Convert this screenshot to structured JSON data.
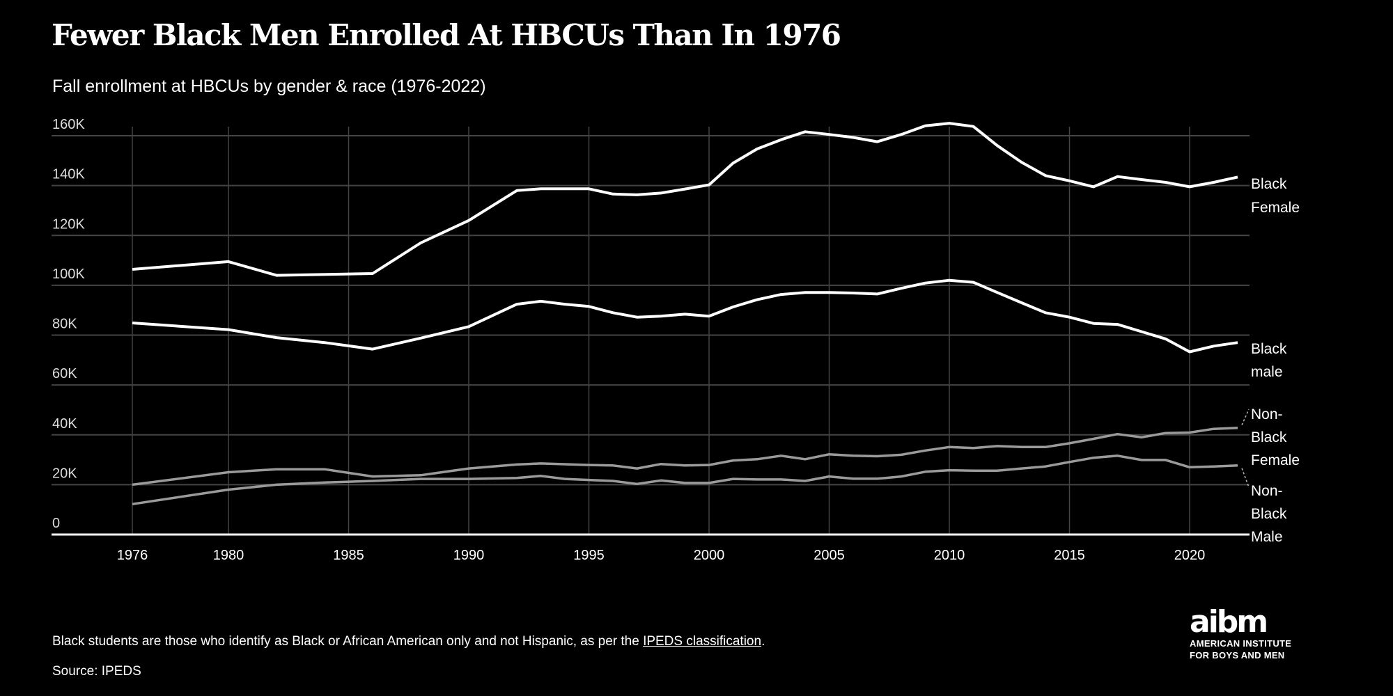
{
  "header": {
    "title": "Fewer Black Men Enrolled At HBCUs Than In 1976",
    "subtitle": "Fall enrollment at HBCUs by gender & race (1976-2022)"
  },
  "footer": {
    "note_text": "Black students are those who identify as Black or African American only and not Hispanic, as per the ",
    "note_link": "IPEDS classification",
    "note_end": ".",
    "source": "Source: IPEDS"
  },
  "logo": {
    "wordmark": "aibm",
    "line1": "AMERICAN INSTITUTE",
    "line2": "FOR BOYS AND MEN"
  },
  "colors": {
    "background": "#000000",
    "black_series": "#ffffff",
    "non_black_series": "#9a9a9a",
    "grid": "#444444"
  },
  "chart_data": {
    "type": "line",
    "title": "Fewer Black Men Enrolled At HBCUs Than In 1976",
    "subtitle": "Fall enrollment at HBCUs by gender & race (1976-2022)",
    "xlabel": "",
    "ylabel": "",
    "xlim": [
      1976,
      2022
    ],
    "ylim": [
      0,
      160000
    ],
    "grid": true,
    "legend": "direct labels at right",
    "x_ticks": [
      "1976",
      "1980",
      "1985",
      "1990",
      "1995",
      "2000",
      "2005",
      "2010",
      "2015",
      "2020"
    ],
    "y_ticks": [
      "0",
      "20K",
      "40K",
      "60K",
      "80K",
      "100K",
      "120K",
      "140K",
      "160K"
    ],
    "series": [
      {
        "name": "Black Female",
        "label_lines": [
          "Black",
          "Female"
        ],
        "color": "#ffffff",
        "points": [
          [
            1976,
            106400
          ],
          [
            1980,
            109500
          ],
          [
            1982,
            104000
          ],
          [
            1986,
            104700
          ],
          [
            1988,
            117000
          ],
          [
            1990,
            126000
          ],
          [
            1992,
            138000
          ],
          [
            1993,
            138700
          ],
          [
            1995,
            138700
          ],
          [
            1996,
            136600
          ],
          [
            1997,
            136300
          ],
          [
            1998,
            137000
          ],
          [
            1999,
            138600
          ],
          [
            2000,
            140300
          ],
          [
            2001,
            149000
          ],
          [
            2002,
            154700
          ],
          [
            2003,
            158400
          ],
          [
            2004,
            161600
          ],
          [
            2005,
            160500
          ],
          [
            2006,
            159300
          ],
          [
            2007,
            157600
          ],
          [
            2008,
            160500
          ],
          [
            2009,
            164000
          ],
          [
            2010,
            165000
          ],
          [
            2011,
            163700
          ],
          [
            2012,
            156000
          ],
          [
            2013,
            149400
          ],
          [
            2014,
            144000
          ],
          [
            2015,
            141900
          ],
          [
            2016,
            139500
          ],
          [
            2017,
            143600
          ],
          [
            2018,
            142400
          ],
          [
            2019,
            141300
          ],
          [
            2020,
            139500
          ],
          [
            2021,
            141300
          ],
          [
            2022,
            143400
          ]
        ]
      },
      {
        "name": "Black male",
        "label_lines": [
          "Black",
          "male"
        ],
        "color": "#ffffff",
        "points": [
          [
            1976,
            84900
          ],
          [
            1980,
            82200
          ],
          [
            1982,
            79000
          ],
          [
            1984,
            77000
          ],
          [
            1986,
            74400
          ],
          [
            1988,
            78800
          ],
          [
            1990,
            83400
          ],
          [
            1992,
            92400
          ],
          [
            1993,
            93600
          ],
          [
            1994,
            92400
          ],
          [
            1995,
            91500
          ],
          [
            1996,
            89000
          ],
          [
            1997,
            87200
          ],
          [
            1998,
            87600
          ],
          [
            1999,
            88400
          ],
          [
            2000,
            87600
          ],
          [
            2001,
            91300
          ],
          [
            2002,
            94200
          ],
          [
            2003,
            96300
          ],
          [
            2004,
            97100
          ],
          [
            2005,
            97100
          ],
          [
            2006,
            96900
          ],
          [
            2007,
            96500
          ],
          [
            2008,
            98800
          ],
          [
            2009,
            100900
          ],
          [
            2010,
            102000
          ],
          [
            2011,
            101200
          ],
          [
            2012,
            97100
          ],
          [
            2013,
            93000
          ],
          [
            2014,
            89000
          ],
          [
            2015,
            87200
          ],
          [
            2016,
            84700
          ],
          [
            2017,
            84300
          ],
          [
            2018,
            81400
          ],
          [
            2019,
            78500
          ],
          [
            2020,
            73300
          ],
          [
            2021,
            75600
          ],
          [
            2022,
            77000
          ]
        ]
      },
      {
        "name": "Non-Black Female",
        "label_lines": [
          "Non-",
          "Black",
          "Female"
        ],
        "color": "#9a9a9a",
        "points": [
          [
            1976,
            20000
          ],
          [
            1980,
            25000
          ],
          [
            1982,
            26200
          ],
          [
            1984,
            26200
          ],
          [
            1986,
            23300
          ],
          [
            1988,
            23800
          ],
          [
            1990,
            26500
          ],
          [
            1992,
            28100
          ],
          [
            1993,
            28500
          ],
          [
            1995,
            27900
          ],
          [
            1996,
            27700
          ],
          [
            1997,
            26500
          ],
          [
            1998,
            28300
          ],
          [
            1999,
            27700
          ],
          [
            2000,
            27900
          ],
          [
            2001,
            29700
          ],
          [
            2002,
            30200
          ],
          [
            2003,
            31600
          ],
          [
            2004,
            30200
          ],
          [
            2005,
            32200
          ],
          [
            2006,
            31600
          ],
          [
            2007,
            31400
          ],
          [
            2008,
            32000
          ],
          [
            2009,
            33700
          ],
          [
            2010,
            35100
          ],
          [
            2011,
            34700
          ],
          [
            2012,
            35500
          ],
          [
            2013,
            35100
          ],
          [
            2014,
            35100
          ],
          [
            2015,
            36600
          ],
          [
            2016,
            38400
          ],
          [
            2017,
            40300
          ],
          [
            2018,
            39000
          ],
          [
            2019,
            40700
          ],
          [
            2020,
            40900
          ],
          [
            2021,
            42400
          ],
          [
            2022,
            42800
          ]
        ]
      },
      {
        "name": "Non-Black Male",
        "label_lines": [
          "Non-",
          "Black",
          "Male"
        ],
        "color": "#9a9a9a",
        "points": [
          [
            1976,
            12200
          ],
          [
            1980,
            18000
          ],
          [
            1982,
            20000
          ],
          [
            1984,
            20900
          ],
          [
            1986,
            21500
          ],
          [
            1988,
            22300
          ],
          [
            1990,
            22300
          ],
          [
            1992,
            22700
          ],
          [
            1993,
            23500
          ],
          [
            1994,
            22300
          ],
          [
            1995,
            21900
          ],
          [
            1996,
            21500
          ],
          [
            1997,
            20300
          ],
          [
            1998,
            21700
          ],
          [
            1999,
            20700
          ],
          [
            2000,
            20700
          ],
          [
            2001,
            22300
          ],
          [
            2002,
            22100
          ],
          [
            2003,
            22100
          ],
          [
            2004,
            21500
          ],
          [
            2005,
            23300
          ],
          [
            2006,
            22400
          ],
          [
            2007,
            22400
          ],
          [
            2008,
            23300
          ],
          [
            2009,
            25200
          ],
          [
            2010,
            25800
          ],
          [
            2011,
            25600
          ],
          [
            2012,
            25600
          ],
          [
            2013,
            26500
          ],
          [
            2014,
            27300
          ],
          [
            2015,
            29100
          ],
          [
            2016,
            30800
          ],
          [
            2017,
            31600
          ],
          [
            2018,
            29900
          ],
          [
            2019,
            29900
          ],
          [
            2020,
            27000
          ],
          [
            2021,
            27300
          ],
          [
            2022,
            27700
          ]
        ]
      }
    ]
  }
}
